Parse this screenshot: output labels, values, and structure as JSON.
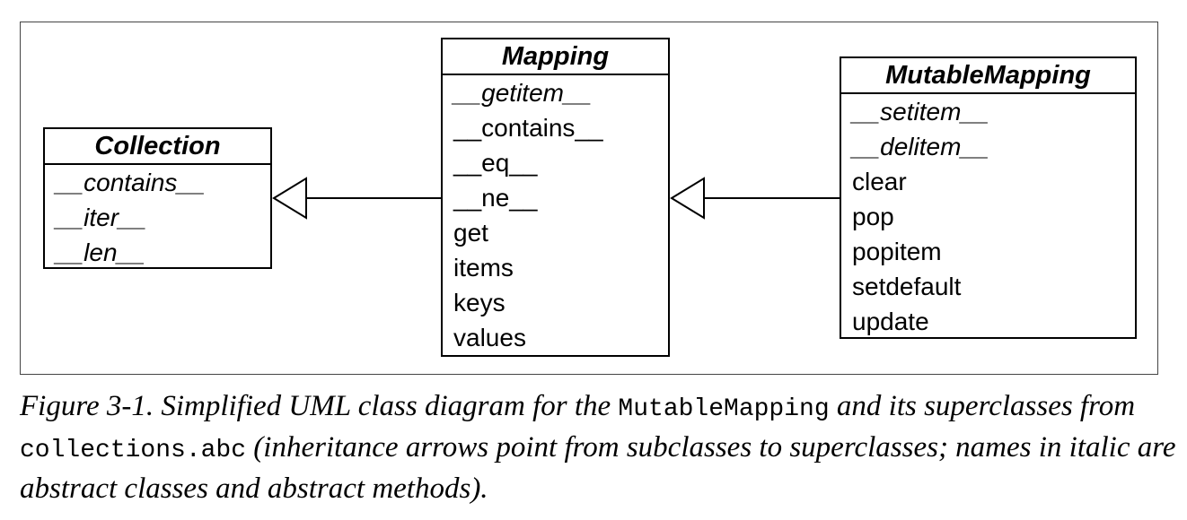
{
  "classes": {
    "collection": {
      "name": "Collection",
      "methods": [
        {
          "label": "__contains__",
          "abstract": true
        },
        {
          "label": "__iter__",
          "abstract": true
        },
        {
          "label": "__len__",
          "abstract": true
        }
      ]
    },
    "mapping": {
      "name": "Mapping",
      "methods": [
        {
          "label": "__getitem__",
          "abstract": true
        },
        {
          "label": "__contains__",
          "abstract": false
        },
        {
          "label": "__eq__",
          "abstract": false
        },
        {
          "label": "__ne__",
          "abstract": false
        },
        {
          "label": "get",
          "abstract": false
        },
        {
          "label": "items",
          "abstract": false
        },
        {
          "label": "keys",
          "abstract": false
        },
        {
          "label": "values",
          "abstract": false
        }
      ]
    },
    "mutable_mapping": {
      "name": "MutableMapping",
      "methods": [
        {
          "label": "__setitem__",
          "abstract": true
        },
        {
          "label": "__delitem__",
          "abstract": true
        },
        {
          "label": "clear",
          "abstract": false
        },
        {
          "label": "pop",
          "abstract": false
        },
        {
          "label": "popitem",
          "abstract": false
        },
        {
          "label": "setdefault",
          "abstract": false
        },
        {
          "label": "update",
          "abstract": false
        }
      ]
    }
  },
  "relations": [
    {
      "from": "Mapping",
      "to": "Collection",
      "type": "inheritance"
    },
    {
      "from": "MutableMapping",
      "to": "Mapping",
      "type": "inheritance"
    }
  ],
  "caption": {
    "part1": "Figure 3-1. Simplified UML class diagram for the ",
    "code1": "MutableMapping",
    "part2": " and its superclasses from ",
    "code2": "collections.abc",
    "part3": " (inheritance arrows point from subclasses to superclasses; names in italic are abstract classes and abstract methods)."
  }
}
